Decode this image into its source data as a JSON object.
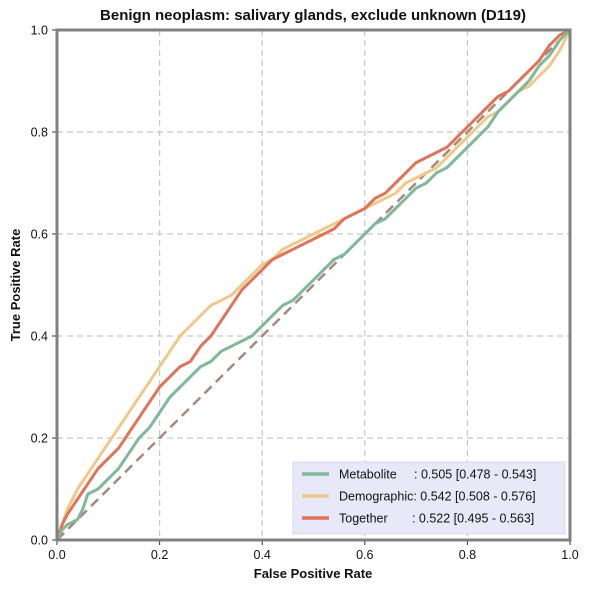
{
  "chart_data": {
    "type": "line",
    "title": "Benign neoplasm: salivary glands, exclude unknown (D119)",
    "xlabel": "False Positive Rate",
    "ylabel": "True Positive Rate",
    "xlim": [
      0,
      1
    ],
    "ylim": [
      0,
      1
    ],
    "xticks": [
      "0.0",
      "0.2",
      "0.4",
      "0.6",
      "0.8",
      "1.0"
    ],
    "yticks": [
      "0.0",
      "0.2",
      "0.4",
      "0.6",
      "0.8",
      "1.0"
    ],
    "grid": true,
    "legend_position": "lower-right",
    "diagonal_color": "#a88878",
    "series": [
      {
        "name": "Metabolite",
        "label_pad": "     ",
        "auc": ": 0.505 [0.478 - 0.543]",
        "color": "#7fb89a",
        "x": [
          0,
          0.01,
          0.02,
          0.04,
          0.05,
          0.06,
          0.08,
          0.1,
          0.12,
          0.14,
          0.16,
          0.18,
          0.2,
          0.22,
          0.24,
          0.26,
          0.28,
          0.3,
          0.32,
          0.34,
          0.36,
          0.38,
          0.4,
          0.42,
          0.44,
          0.46,
          0.48,
          0.5,
          0.52,
          0.54,
          0.56,
          0.58,
          0.6,
          0.62,
          0.64,
          0.66,
          0.68,
          0.7,
          0.72,
          0.74,
          0.76,
          0.78,
          0.8,
          0.82,
          0.84,
          0.86,
          0.88,
          0.9,
          0.92,
          0.94,
          0.96,
          0.98,
          1.0
        ],
        "y": [
          0,
          0.02,
          0.03,
          0.04,
          0.06,
          0.09,
          0.1,
          0.12,
          0.14,
          0.17,
          0.2,
          0.22,
          0.25,
          0.28,
          0.3,
          0.32,
          0.34,
          0.35,
          0.37,
          0.38,
          0.39,
          0.4,
          0.42,
          0.44,
          0.46,
          0.47,
          0.49,
          0.51,
          0.53,
          0.55,
          0.56,
          0.58,
          0.6,
          0.62,
          0.63,
          0.65,
          0.67,
          0.69,
          0.7,
          0.72,
          0.73,
          0.75,
          0.77,
          0.79,
          0.81,
          0.84,
          0.86,
          0.88,
          0.9,
          0.93,
          0.95,
          0.98,
          1.0
        ]
      },
      {
        "name": "Demographic",
        "label_pad": "",
        "auc": ": 0.542 [0.508 - 0.576]",
        "color": "#f0c98a",
        "x": [
          0,
          0.01,
          0.02,
          0.04,
          0.06,
          0.08,
          0.1,
          0.12,
          0.14,
          0.16,
          0.18,
          0.2,
          0.22,
          0.24,
          0.26,
          0.28,
          0.3,
          0.32,
          0.34,
          0.36,
          0.38,
          0.4,
          0.42,
          0.44,
          0.46,
          0.48,
          0.5,
          0.52,
          0.54,
          0.56,
          0.58,
          0.6,
          0.62,
          0.64,
          0.66,
          0.68,
          0.7,
          0.72,
          0.74,
          0.76,
          0.78,
          0.8,
          0.82,
          0.84,
          0.86,
          0.88,
          0.9,
          0.92,
          0.94,
          0.96,
          0.98,
          1.0
        ],
        "y": [
          0,
          0.03,
          0.06,
          0.1,
          0.13,
          0.16,
          0.19,
          0.22,
          0.25,
          0.28,
          0.31,
          0.34,
          0.37,
          0.4,
          0.42,
          0.44,
          0.46,
          0.47,
          0.48,
          0.5,
          0.52,
          0.54,
          0.55,
          0.57,
          0.58,
          0.59,
          0.6,
          0.61,
          0.62,
          0.63,
          0.64,
          0.65,
          0.66,
          0.67,
          0.68,
          0.7,
          0.71,
          0.72,
          0.73,
          0.75,
          0.77,
          0.79,
          0.81,
          0.83,
          0.84,
          0.86,
          0.88,
          0.89,
          0.91,
          0.93,
          0.96,
          1.0
        ]
      },
      {
        "name": "Together",
        "label_pad": "       ",
        "auc": ": 0.522 [0.495 - 0.563]",
        "color": "#e07458",
        "x": [
          0,
          0.01,
          0.02,
          0.04,
          0.06,
          0.08,
          0.1,
          0.12,
          0.14,
          0.16,
          0.18,
          0.2,
          0.22,
          0.24,
          0.26,
          0.28,
          0.3,
          0.32,
          0.34,
          0.36,
          0.38,
          0.4,
          0.42,
          0.44,
          0.46,
          0.48,
          0.5,
          0.52,
          0.54,
          0.56,
          0.58,
          0.6,
          0.62,
          0.64,
          0.66,
          0.68,
          0.7,
          0.72,
          0.74,
          0.76,
          0.78,
          0.8,
          0.82,
          0.84,
          0.86,
          0.88,
          0.9,
          0.92,
          0.94,
          0.96,
          0.98,
          1.0
        ],
        "y": [
          0,
          0.03,
          0.05,
          0.08,
          0.11,
          0.14,
          0.16,
          0.18,
          0.21,
          0.24,
          0.27,
          0.3,
          0.32,
          0.34,
          0.35,
          0.38,
          0.4,
          0.43,
          0.46,
          0.49,
          0.51,
          0.53,
          0.55,
          0.56,
          0.57,
          0.58,
          0.59,
          0.6,
          0.61,
          0.63,
          0.64,
          0.65,
          0.67,
          0.68,
          0.7,
          0.72,
          0.74,
          0.75,
          0.76,
          0.77,
          0.79,
          0.81,
          0.83,
          0.85,
          0.87,
          0.88,
          0.9,
          0.92,
          0.94,
          0.97,
          0.99,
          1.0
        ]
      }
    ]
  }
}
